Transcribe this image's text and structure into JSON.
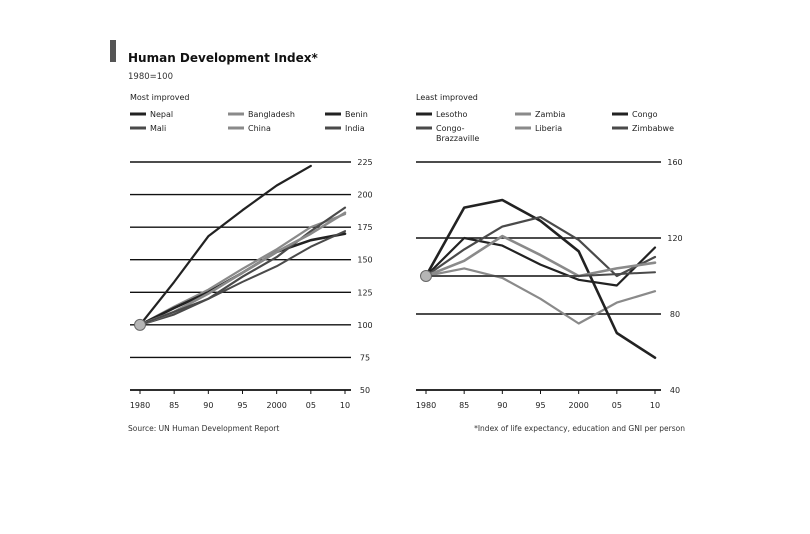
{
  "header": {
    "title": "Human Development Index*",
    "subtitle": "1980=100"
  },
  "footer": {
    "source": "Source: UN Human Development Report",
    "note": "*Index of life expectancy, education and GNI per person"
  },
  "colors": {
    "line_dark": "#222222",
    "line_mid": "#4a4a4a",
    "line_light": "#8a8a8a",
    "grid": "#111111",
    "marker": "#b5b5b5"
  },
  "chart_data": [
    {
      "type": "line",
      "title": "Most improved",
      "x": [
        1980,
        1985,
        1990,
        1995,
        2000,
        2005,
        2010
      ],
      "x_tick_labels": [
        "1980",
        "85",
        "90",
        "95",
        "2000",
        "05",
        "10"
      ],
      "ylim": [
        50,
        225
      ],
      "y_ticks": [
        50,
        75,
        100,
        125,
        150,
        175,
        200,
        225
      ],
      "grid": true,
      "legend_placement": "top",
      "series": [
        {
          "name": "Nepal",
          "values": [
            100,
            133,
            168,
            188,
            207,
            222,
            null
          ]
        },
        {
          "name": "Bangladesh",
          "values": [
            100,
            114,
            127,
            143,
            158,
            175,
            185
          ]
        },
        {
          "name": "Benin",
          "values": [
            100,
            113,
            125,
            140,
            156,
            165,
            170
          ]
        },
        {
          "name": "Mali",
          "values": [
            100,
            108,
            120,
            137,
            152,
            172,
            190
          ]
        },
        {
          "name": "China",
          "values": [
            100,
            110,
            124,
            140,
            156,
            170,
            186
          ]
        },
        {
          "name": "India",
          "values": [
            100,
            110,
            120,
            133,
            145,
            160,
            172
          ]
        }
      ]
    },
    {
      "type": "line",
      "title": "Least improved",
      "x": [
        1980,
        1985,
        1990,
        1995,
        2000,
        2005,
        2010
      ],
      "x_tick_labels": [
        "1980",
        "85",
        "90",
        "95",
        "2000",
        "05",
        "10"
      ],
      "ylim": [
        40,
        160
      ],
      "y_ticks": [
        40,
        80,
        120,
        160
      ],
      "grid": true,
      "legend_placement": "top",
      "series": [
        {
          "name": "Lesotho",
          "values": [
            100,
            120,
            116,
            106,
            98,
            95,
            115
          ]
        },
        {
          "name": "Zambia",
          "values": [
            100,
            104,
            99,
            88,
            75,
            86,
            92
          ]
        },
        {
          "name": "Congo",
          "values": [
            100,
            136,
            140,
            129,
            113,
            70,
            57
          ]
        },
        {
          "name": "Congo-Brazzaville",
          "values": [
            100,
            114,
            126,
            131,
            119,
            100,
            110
          ]
        },
        {
          "name": "Liberia",
          "values": [
            100,
            108,
            121,
            111,
            100,
            104,
            107
          ]
        },
        {
          "name": "Zimbabwe",
          "values": [
            100,
            100,
            100,
            100,
            100,
            101,
            102
          ]
        }
      ]
    }
  ]
}
